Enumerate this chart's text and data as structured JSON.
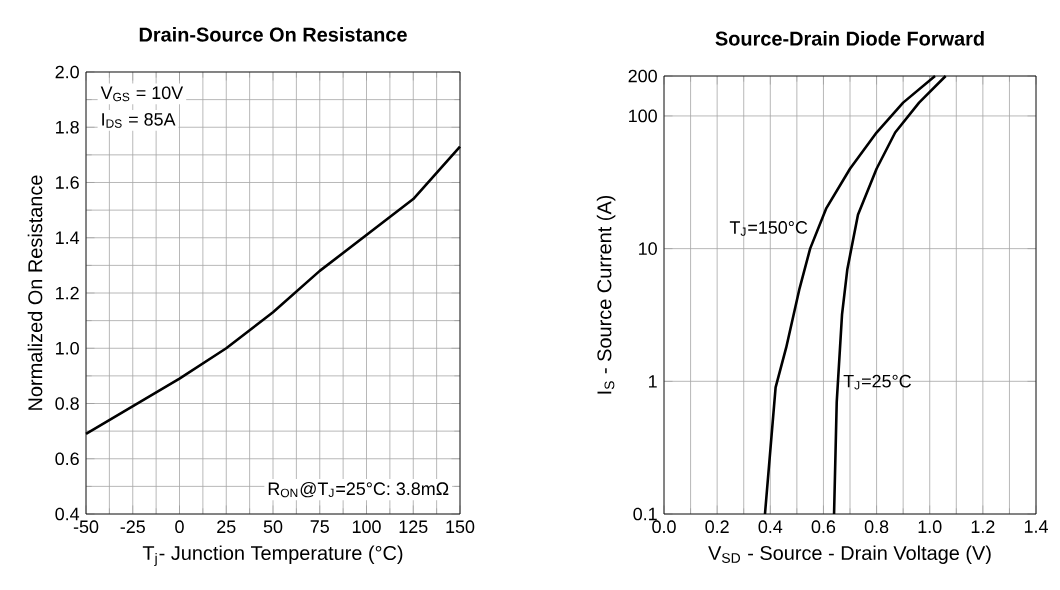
{
  "chart_data": [
    {
      "type": "line",
      "title": "Drain-Source On Resistance",
      "xlabel": "T$_{j}$- Junction Temperature (°C)",
      "ylabel": "Normalized On Resistance",
      "x": [
        -50,
        -25,
        0,
        25,
        50,
        75,
        100,
        125,
        150
      ],
      "series": [
        {
          "color": "#000000",
          "values": [
            0.69,
            0.79,
            0.89,
            1.0,
            1.13,
            1.28,
            1.41,
            1.54,
            1.73
          ]
        }
      ],
      "xlim": [
        -50,
        150
      ],
      "ylim": [
        0.4,
        2.0
      ],
      "xticks": [
        -50,
        -25,
        0,
        25,
        50,
        75,
        100,
        125,
        150
      ],
      "yticks": [
        {
          "value": 0.4,
          "label": "0.4"
        },
        {
          "value": 0.6,
          "label": "0.6"
        },
        {
          "value": 0.8,
          "label": "0.8"
        },
        {
          "value": 1.0,
          "label": "1.0"
        },
        {
          "value": 1.2,
          "label": "1.2"
        },
        {
          "value": 1.4,
          "label": "1.4"
        },
        {
          "value": 1.6,
          "label": "1.6"
        },
        {
          "value": 1.8,
          "label": "1.8"
        },
        {
          "value": 2.0,
          "label": "2.0"
        }
      ],
      "annotations": [
        "V$_{GS}$ = 10V",
        "I$_{DS}$ = 85A",
        "R$_{ON}$@T$_{J}$=25°C: 3.8mΩ"
      ],
      "grid": true
    },
    {
      "type": "line",
      "title": "Source-Drain Diode Forward",
      "xlabel": "V$_{SD}$ - Source - Drain Voltage (V)",
      "ylabel": "I$_{S}$ - Source Current (A)",
      "series": [
        {
          "name": "T$_{J}$=150°C",
          "color": "#000000",
          "x": [
            0.38,
            0.42,
            0.46,
            0.51,
            0.55,
            0.61,
            0.7,
            0.8,
            0.9,
            1.02
          ],
          "values": [
            0.1,
            0.9,
            1.8,
            5,
            10,
            20,
            40,
            75,
            126,
            200
          ]
        },
        {
          "name": "T$_{J}$=25°C",
          "color": "#000000",
          "x": [
            0.64,
            0.65,
            0.67,
            0.69,
            0.73,
            0.8,
            0.87,
            0.96,
            1.06
          ],
          "values": [
            0.1,
            0.7,
            3.2,
            7,
            18,
            40,
            75,
            126,
            200
          ]
        }
      ],
      "xlim": [
        0,
        1.4
      ],
      "ylim": [
        0.1,
        200
      ],
      "xticks": [
        {
          "value": 0,
          "label": "0.0"
        },
        {
          "value": 0.2,
          "label": "0.2"
        },
        {
          "value": 0.4,
          "label": "0.4"
        },
        {
          "value": 0.6,
          "label": "0.6"
        },
        {
          "value": 0.8,
          "label": "0.8"
        },
        {
          "value": 1.0,
          "label": "1.0"
        },
        {
          "value": 1.2,
          "label": "1.2"
        },
        {
          "value": 1.4,
          "label": "1.4"
        }
      ],
      "yticks": [
        0.1,
        1,
        10,
        100,
        200
      ],
      "log": "y",
      "grid": true
    }
  ]
}
